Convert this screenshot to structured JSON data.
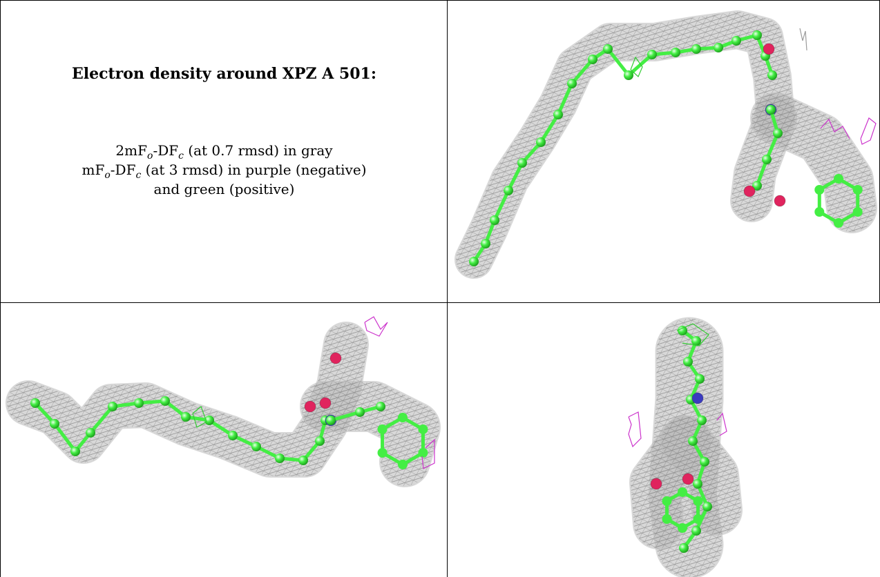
{
  "caption": {
    "title": "Electron density around XPZ A 501:",
    "line1_prefix": "2mF",
    "line1_sub1": "o",
    "line1_mid": "-DF",
    "line1_sub2": "c",
    "line1_suffix": " (at 0.7 rmsd) in gray",
    "line2_prefix": "mF",
    "line2_sub1": "o",
    "line2_mid": "-DF",
    "line2_sub2": "c",
    "line2_suffix": " (at 3 rmsd) in purple (negative)",
    "line3": "and green (positive)"
  },
  "colors": {
    "mesh_2fofc": "#8a8a8a",
    "mesh_negative": "#cc33cc",
    "mesh_positive": "#33cc33",
    "carbon": "#44ee44",
    "oxygen": "#e0245e",
    "nitrogen": "#3b3bbf"
  },
  "views": [
    {
      "name": "view-top-right"
    },
    {
      "name": "view-bottom-left"
    },
    {
      "name": "view-bottom-right"
    }
  ]
}
